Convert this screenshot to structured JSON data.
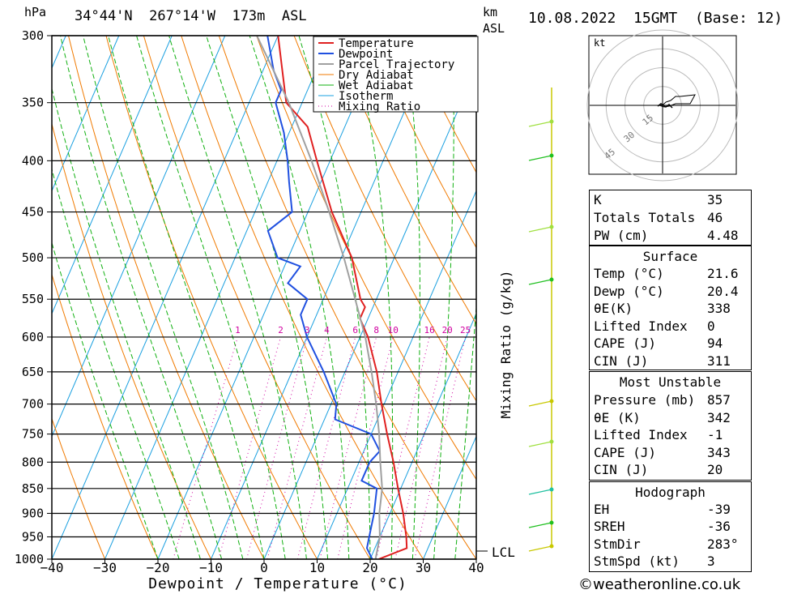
{
  "header": {
    "hpa_label": "hPa",
    "location": "34°44'N  267°14'W  173m  ASL",
    "km_label": "km",
    "asl_label": "ASL",
    "datetime": "10.08.2022  15GMT  (Base: 12)"
  },
  "chart_data": {
    "type": "line",
    "title": "",
    "xlabel": "Dewpoint / Temperature (°C)",
    "ylabel": "hPa",
    "right_ylabel": "Mixing Ratio (g/kg)",
    "xlim": [
      -40,
      40
    ],
    "ylim": [
      1000,
      300
    ],
    "x_ticks": [
      -40,
      -30,
      -20,
      -10,
      0,
      10,
      20,
      30,
      40
    ],
    "pressure_levels": [
      300,
      350,
      400,
      450,
      500,
      550,
      600,
      650,
      700,
      750,
      800,
      850,
      900,
      950,
      1000
    ],
    "mixing_ratio_labels": [
      "1",
      "2",
      "3",
      "4",
      "6",
      "8",
      "10",
      "16",
      "20",
      "25"
    ],
    "lcl_label": "LCL",
    "legend": [
      "Temperature",
      "Dewpoint",
      "Parcel Trajectory",
      "Dry Adiabat",
      "Wet Adiabat",
      "Isotherm",
      "Mixing Ratio"
    ],
    "series": [
      {
        "name": "Temperature",
        "color": "#e02020",
        "points": [
          [
            1000,
            21.6
          ],
          [
            975,
            26
          ],
          [
            950,
            25
          ],
          [
            900,
            22.5
          ],
          [
            850,
            19.5
          ],
          [
            800,
            16.5
          ],
          [
            750,
            13
          ],
          [
            700,
            9.5
          ],
          [
            650,
            6
          ],
          [
            600,
            1.5
          ],
          [
            575,
            -1.5
          ],
          [
            560,
            -1.5
          ],
          [
            550,
            -3
          ],
          [
            500,
            -8
          ],
          [
            450,
            -15.5
          ],
          [
            400,
            -22.5
          ],
          [
            370,
            -27
          ],
          [
            350,
            -33
          ],
          [
            300,
            -40
          ]
        ]
      },
      {
        "name": "Dewpoint",
        "color": "#2050e0",
        "points": [
          [
            1000,
            20.4
          ],
          [
            975,
            18.5
          ],
          [
            950,
            18
          ],
          [
            900,
            17
          ],
          [
            850,
            15.5
          ],
          [
            835,
            12
          ],
          [
            800,
            12
          ],
          [
            780,
            13
          ],
          [
            750,
            10
          ],
          [
            725,
            2
          ],
          [
            700,
            1
          ],
          [
            650,
            -4
          ],
          [
            600,
            -10
          ],
          [
            570,
            -13
          ],
          [
            550,
            -13
          ],
          [
            530,
            -18
          ],
          [
            510,
            -17
          ],
          [
            500,
            -22
          ],
          [
            470,
            -26
          ],
          [
            450,
            -23
          ],
          [
            420,
            -26
          ],
          [
            400,
            -28
          ],
          [
            375,
            -31
          ],
          [
            350,
            -35
          ],
          [
            340,
            -35
          ],
          [
            325,
            -38
          ],
          [
            300,
            -42
          ]
        ]
      },
      {
        "name": "Parcel Trajectory",
        "color": "#a0a0a0",
        "points": [
          [
            1000,
            21
          ],
          [
            950,
            20
          ],
          [
            900,
            18
          ],
          [
            850,
            16.5
          ],
          [
            800,
            14
          ],
          [
            750,
            11.5
          ],
          [
            700,
            8.5
          ],
          [
            650,
            5
          ],
          [
            600,
            1
          ],
          [
            550,
            -4
          ],
          [
            500,
            -9.5
          ],
          [
            450,
            -16
          ],
          [
            400,
            -23.5
          ],
          [
            350,
            -32.5
          ],
          [
            300,
            -44
          ]
        ]
      }
    ]
  },
  "hodograph": {
    "unit": "kt",
    "ring_labels": [
      "15",
      "30",
      "45"
    ]
  },
  "indices": [
    {
      "label": "K",
      "value": "35"
    },
    {
      "label": "Totals Totals",
      "value": "46"
    },
    {
      "label": "PW (cm)",
      "value": "4.48"
    }
  ],
  "surface": {
    "title": "Surface",
    "rows": [
      {
        "label": "Temp (°C)",
        "value": "21.6"
      },
      {
        "label": "Dewp (°C)",
        "value": "20.4"
      },
      {
        "label": "θE(K)",
        "value": "338"
      },
      {
        "label": "Lifted Index",
        "value": "0"
      },
      {
        "label": "CAPE (J)",
        "value": "94"
      },
      {
        "label": "CIN (J)",
        "value": "311"
      }
    ]
  },
  "most_unstable": {
    "title": "Most Unstable",
    "rows": [
      {
        "label": "Pressure (mb)",
        "value": "857"
      },
      {
        "label": "θE (K)",
        "value": "342"
      },
      {
        "label": "Lifted Index",
        "value": "-1"
      },
      {
        "label": "CAPE (J)",
        "value": "343"
      },
      {
        "label": "CIN (J)",
        "value": "20"
      }
    ]
  },
  "hodograph_params": {
    "title": "Hodograph",
    "rows": [
      {
        "label": "EH",
        "value": "-39"
      },
      {
        "label": "SREH",
        "value": "-36"
      },
      {
        "label": "StmDir",
        "value": "283°"
      },
      {
        "label": "StmSpd (kt)",
        "value": "3"
      }
    ]
  },
  "credit": "©weatheronline.co.uk",
  "colors": {
    "temperature": "#e02020",
    "dewpoint": "#2050e0",
    "parcel": "#a0a0a0",
    "dry_adiabat": "#f07a00",
    "wet_adiabat": "#10b010",
    "isotherm": "#1aa0e0",
    "mixing_ratio": "#d000a0"
  }
}
